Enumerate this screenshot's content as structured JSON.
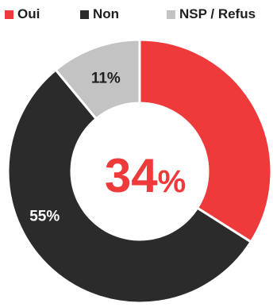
{
  "chart_data": {
    "type": "pie",
    "variant": "donut",
    "categories": [
      "Oui",
      "Non",
      "NSP / Refus"
    ],
    "values": [
      34,
      55,
      11
    ],
    "value_labels": [
      "34%",
      "55%",
      "11%"
    ],
    "center_label": {
      "number": "34",
      "unit": "%"
    },
    "colors": [
      "#ee3a3a",
      "#2b2b2b",
      "#c3c3c3"
    ],
    "legend_position": "top"
  }
}
